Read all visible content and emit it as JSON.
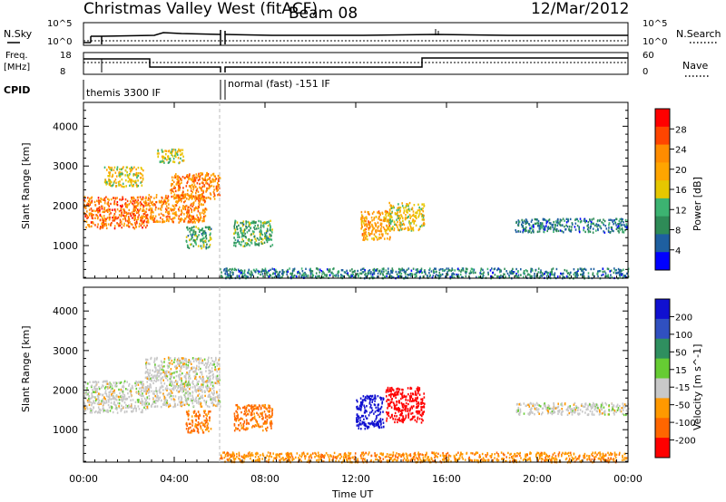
{
  "header": {
    "station_title": "Christmas Valley West (fitACF)",
    "beam_label": "Beam 08",
    "date": "12/Mar/2012"
  },
  "params_panels": {
    "nsky_label": "N.Sky",
    "nsky_ticks": [
      "10^5",
      "10^0"
    ],
    "nsearch_label": "N.Search",
    "nsearch_ticks": [
      "10^5",
      "10^0"
    ],
    "freq_label_line1": "Freq.",
    "freq_label_line2": "[MHz]",
    "freq_ticks": [
      "18",
      "8"
    ],
    "nave_label": "Nave",
    "nave_ticks": [
      "60",
      "0"
    ],
    "cpid_label": "CPID",
    "cpid_segments": [
      "themis 3300 IF",
      "normal (fast) -151 IF"
    ]
  },
  "power_colorbar": {
    "label": "Power [dB]",
    "ticks": [
      "28",
      "24",
      "20",
      "16",
      "12",
      "8",
      "4"
    ],
    "colors": [
      "#ff0000",
      "#ff4500",
      "#ff8c00",
      "#ffa500",
      "#e6c700",
      "#3cb371",
      "#2e8b57",
      "#1e5fa0",
      "#0000ff"
    ]
  },
  "velocity_colorbar": {
    "label": "Velocity [m s^-1]",
    "ticks": [
      "200",
      "100",
      "50",
      "15",
      "-15",
      "-50",
      "-100",
      "-200"
    ],
    "colors": [
      "#1010d0",
      "#3050c0",
      "#2f8f5f",
      "#66cc33",
      "#c8c8c8",
      "#ff9900",
      "#ff6600",
      "#ff0000"
    ]
  },
  "chart_data": [
    {
      "type": "heatmap",
      "panel": "power",
      "ylabel": "Slant Range [km]",
      "xlim_hours": [
        0,
        24
      ],
      "ylim_km": [
        180,
        4600
      ],
      "y_ticks": [
        1000,
        2000,
        3000,
        4000
      ],
      "echo_regions": [
        {
          "t_start": 0.0,
          "t_end": 2.8,
          "r_low": 1450,
          "r_high": 2250,
          "power_db": 24
        },
        {
          "t_start": 0.9,
          "t_end": 2.6,
          "r_low": 2500,
          "r_high": 3000,
          "power_db": 16
        },
        {
          "t_start": 2.7,
          "t_end": 5.4,
          "r_low": 1600,
          "r_high": 2300,
          "power_db": 22
        },
        {
          "t_start": 3.8,
          "t_end": 6.0,
          "r_low": 2200,
          "r_high": 2850,
          "power_db": 22
        },
        {
          "t_start": 3.2,
          "t_end": 4.4,
          "r_low": 3100,
          "r_high": 3450,
          "power_db": 14
        },
        {
          "t_start": 4.5,
          "t_end": 5.6,
          "r_low": 950,
          "r_high": 1500,
          "power_db": 10
        },
        {
          "t_start": 6.6,
          "t_end": 8.3,
          "r_low": 1000,
          "r_high": 1650,
          "power_db": 10
        },
        {
          "t_start": 12.2,
          "t_end": 13.5,
          "r_low": 1150,
          "r_high": 1900,
          "power_db": 20
        },
        {
          "t_start": 13.4,
          "t_end": 15.0,
          "r_low": 1400,
          "r_high": 2100,
          "power_db": 16
        },
        {
          "t_start": 19.0,
          "t_end": 24.0,
          "r_low": 1350,
          "r_high": 1700,
          "power_db": 6
        },
        {
          "t_start": 6.0,
          "t_end": 24.0,
          "r_low": 200,
          "r_high": 450,
          "power_db": 6
        }
      ]
    },
    {
      "type": "heatmap",
      "panel": "velocity",
      "ylabel": "Slant Range [km]",
      "xlabel": "Time UT",
      "xlim_hours": [
        0,
        24
      ],
      "ylim_km": [
        180,
        4600
      ],
      "x_tick_labels": [
        "00:00",
        "04:00",
        "08:00",
        "12:00",
        "16:00",
        "20:00",
        "00:00"
      ],
      "y_ticks": [
        1000,
        2000,
        3000,
        4000
      ],
      "echo_regions": [
        {
          "t_start": 0.0,
          "t_end": 2.8,
          "r_low": 1450,
          "r_high": 2250,
          "velocity_ms": 0
        },
        {
          "t_start": 2.7,
          "t_end": 6.0,
          "r_low": 1600,
          "r_high": 2850,
          "velocity_ms": 0
        },
        {
          "t_start": 4.5,
          "t_end": 5.6,
          "r_low": 950,
          "r_high": 1500,
          "velocity_ms": -60
        },
        {
          "t_start": 6.6,
          "t_end": 8.3,
          "r_low": 1000,
          "r_high": 1650,
          "velocity_ms": -60
        },
        {
          "t_start": 12.0,
          "t_end": 13.2,
          "r_low": 1050,
          "r_high": 1900,
          "velocity_ms": 200
        },
        {
          "t_start": 13.3,
          "t_end": 15.0,
          "r_low": 1200,
          "r_high": 2100,
          "velocity_ms": -150
        },
        {
          "t_start": 19.0,
          "t_end": 24.0,
          "r_low": 1400,
          "r_high": 1700,
          "velocity_ms": 0
        },
        {
          "t_start": 6.0,
          "t_end": 24.0,
          "r_low": 200,
          "r_high": 450,
          "velocity_ms": -40
        }
      ]
    }
  ]
}
